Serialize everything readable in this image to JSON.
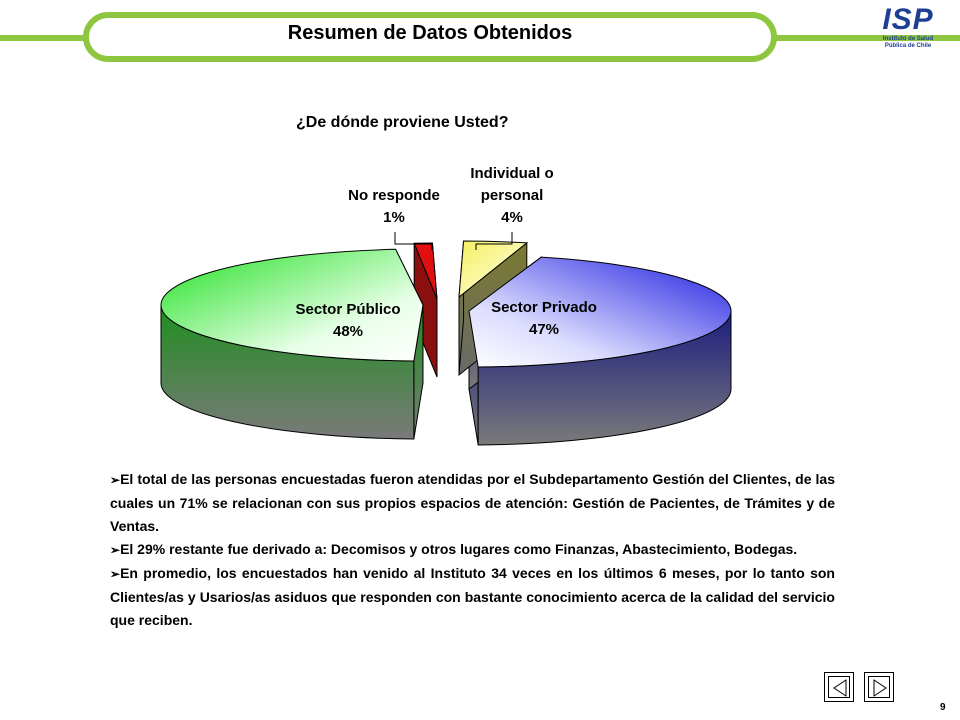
{
  "header": {
    "title": "Resumen de Datos Obtenidos",
    "logo_text": "ISP",
    "logo_subtitle_1": "Instituto de Salud",
    "logo_subtitle_2": "Pública de Chile"
  },
  "chart_data": {
    "type": "pie",
    "title": "¿De dónde proviene Usted?",
    "slices": [
      {
        "label": "Sector Público",
        "value": 48,
        "value_label": "48%",
        "color": "#2ee82e"
      },
      {
        "label": "No responde",
        "value": 1,
        "value_label": "1%",
        "color": "#e01010"
      },
      {
        "label": "Individual o personal",
        "label_line1": "Individual o",
        "label_line2": "personal",
        "value": 4,
        "value_label": "4%",
        "color": "#f4f070"
      },
      {
        "label": "Sector Privado",
        "value": 47,
        "value_label": "47%",
        "color": "#2a2ae8"
      }
    ]
  },
  "bullets": [
    "El total de las personas encuestadas fueron atendidas por el Subdepartamento Gestión del Clientes, de las cuales un 71% se relacionan con sus propios espacios de atención: Gestión de Pacientes, de Trámites y de Ventas.",
    "El 29% restante fue derivado a: Decomisos y otros lugares como Finanzas, Abastecimiento, Bodegas.",
    "En promedio, los encuestados han venido al Instituto 34 veces en los últimos 6 meses, por lo tanto son Clientes/as y Usarios/as asiduos que responden con bastante conocimiento acerca de la calidad del servicio que reciben."
  ],
  "footer": {
    "page_number": "9",
    "prev_icon": "triangle-left-icon",
    "next_icon": "triangle-right-icon"
  }
}
